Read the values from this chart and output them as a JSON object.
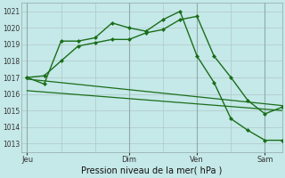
{
  "background_color": "#c5e8e8",
  "grid_color": "#b0c8c8",
  "line_color": "#1a6e1a",
  "title": "Pression niveau de la mer( hPa )",
  "x_ticks_labels": [
    "Jeu",
    "Dim",
    "Ven",
    "Sam"
  ],
  "x_ticks_pos": [
    0,
    36,
    60,
    84
  ],
  "xlim": [
    -2,
    90
  ],
  "ylim": [
    1012.5,
    1021.5
  ],
  "yticks": [
    1013,
    1014,
    1015,
    1016,
    1017,
    1018,
    1019,
    1020,
    1021
  ],
  "series1_x": [
    0,
    6,
    12,
    18,
    24,
    30,
    36,
    42,
    48,
    54,
    60,
    66,
    72,
    78,
    84,
    90
  ],
  "series1_y": [
    1017.0,
    1016.6,
    1019.2,
    1019.2,
    1019.4,
    1020.3,
    1020.0,
    1019.8,
    1020.5,
    1021.0,
    1018.3,
    1016.7,
    1014.5,
    1013.8,
    1013.2,
    1013.2
  ],
  "series2_x": [
    0,
    6,
    12,
    18,
    24,
    30,
    36,
    42,
    48,
    54,
    60,
    66,
    72,
    78,
    84,
    90
  ],
  "series2_y": [
    1017.0,
    1017.1,
    1018.0,
    1018.9,
    1019.1,
    1019.3,
    1019.3,
    1019.7,
    1019.9,
    1020.5,
    1020.7,
    1018.3,
    1017.0,
    1015.6,
    1014.8,
    1015.2
  ],
  "series3_x": [
    0,
    90
  ],
  "series3_y": [
    1016.9,
    1015.3
  ],
  "series4_x": [
    0,
    90
  ],
  "series4_y": [
    1016.2,
    1015.0
  ]
}
